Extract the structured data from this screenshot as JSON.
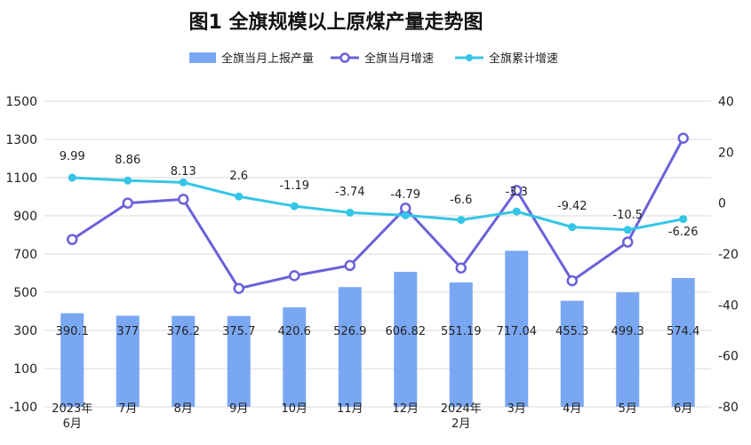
{
  "chart_data": {
    "type": "bar-line-combo",
    "title": "图1   全旗规模以上原煤产量走势图",
    "legend_position": "top",
    "grid": true,
    "colors": {
      "bar": "#7aa7f2",
      "monthly_growth": "#6a62d8",
      "cumulative_growth": "#35c5e6"
    },
    "categories": [
      [
        "2023年",
        "6月"
      ],
      [
        "7月"
      ],
      [
        "8月"
      ],
      [
        "9月"
      ],
      [
        "10月"
      ],
      [
        "11月"
      ],
      [
        "12月"
      ],
      [
        "2024年",
        "2月"
      ],
      [
        "3月"
      ],
      [
        "4月"
      ],
      [
        "5月"
      ],
      [
        "6月"
      ]
    ],
    "y_left": {
      "min": -100,
      "max": 1500,
      "ticks": [
        "-100",
        "100",
        "300",
        "500",
        "700",
        "900",
        "1100",
        "1300",
        "1500"
      ]
    },
    "y_right": {
      "min": -80,
      "max": 40,
      "ticks": [
        "-80",
        "-60",
        "-40",
        "-20",
        "0",
        "20",
        "40"
      ]
    },
    "series": [
      {
        "name": "全旗当月上报产量",
        "kind": "bar",
        "axis": "left",
        "values": [
          390.1,
          377,
          376.2,
          375.7,
          420.6,
          526.9,
          606.82,
          551.19,
          717.04,
          455.3,
          499.3,
          574.4
        ],
        "labels": [
          "390.1",
          "377",
          "376.2",
          "375.7",
          "420.6",
          "526.9",
          "606.82",
          "551.19",
          "717.04",
          "455.3",
          "499.3",
          "574.4"
        ]
      },
      {
        "name": "全旗当月增速",
        "kind": "line",
        "marker": "hollow-circle",
        "axis": "right",
        "values": [
          -14.3,
          0,
          1.5,
          -33.5,
          -28.5,
          -24.5,
          -2,
          -25.5,
          5,
          -30.5,
          -15.3,
          25.5
        ]
      },
      {
        "name": "全旗累计增速",
        "kind": "line",
        "marker": "filled-circle",
        "axis": "right",
        "values": [
          9.99,
          8.86,
          8.13,
          2.6,
          -1.19,
          -3.74,
          -4.79,
          -6.6,
          -3.3,
          -9.42,
          -10.5,
          -6.26
        ],
        "labels": [
          "9.99",
          "8.86",
          "8.13",
          "2.6",
          "-1.19",
          "-3.74",
          "-4.79",
          "-6.6",
          "-3.3",
          "-9.42",
          "-10.5",
          "-6.26"
        ]
      }
    ]
  }
}
